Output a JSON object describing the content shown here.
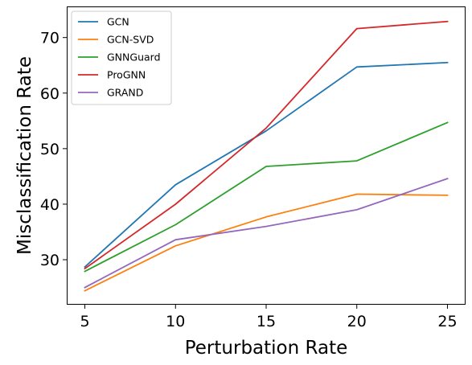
{
  "chart_data": {
    "type": "line",
    "xlabel": "Perturbation Rate",
    "ylabel": "Misclassification Rate",
    "x": [
      5,
      10,
      15,
      20,
      25
    ],
    "xlim": [
      4.0,
      26.0
    ],
    "ylim": [
      21.9,
      75.6
    ],
    "xticks": [
      5,
      10,
      15,
      20,
      25
    ],
    "yticks": [
      30,
      40,
      50,
      60,
      70
    ],
    "grid": false,
    "legend_position": "top-left",
    "series": [
      {
        "name": "GCN",
        "color": "#1f77b4",
        "values": [
          28.7,
          43.5,
          53.2,
          64.7,
          65.5
        ]
      },
      {
        "name": "GCN-SVD",
        "color": "#ff7f0e",
        "values": [
          24.4,
          32.5,
          37.7,
          41.8,
          41.6
        ]
      },
      {
        "name": "GNNGuard",
        "color": "#2ca02c",
        "values": [
          27.9,
          36.3,
          46.8,
          47.8,
          54.7
        ]
      },
      {
        "name": "ProGNN",
        "color": "#d62728",
        "values": [
          28.4,
          40.0,
          53.7,
          71.6,
          72.9
        ]
      },
      {
        "name": "GRAND",
        "color": "#9467bd",
        "values": [
          25.0,
          33.6,
          36.0,
          39.0,
          44.6
        ]
      }
    ]
  }
}
